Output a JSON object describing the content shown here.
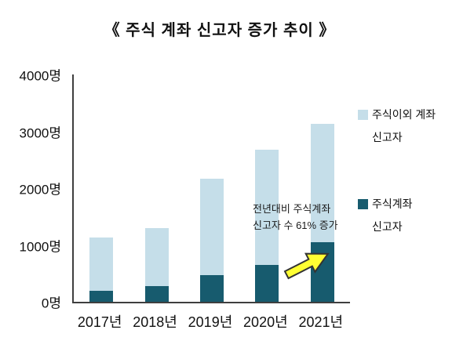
{
  "title": "《 주식 계좌 신고자 증가 추이 》",
  "chart_data": {
    "type": "bar",
    "stacked": true,
    "title": "《 주식 계좌 신고자 증가 추이 》",
    "categories": [
      "2017년",
      "2018년",
      "2019년",
      "2020년",
      "2021년"
    ],
    "series": [
      {
        "name": "주식계좌 신고자",
        "color": "#175b6e",
        "values": [
          200,
          270,
          470,
          650,
          1050
        ]
      },
      {
        "name": "주식이외 계좌 신고자",
        "color": "#c5dee9",
        "values": [
          930,
          1030,
          1690,
          2030,
          2080
        ]
      }
    ],
    "totals": [
      1130,
      1300,
      2160,
      2680,
      3130
    ],
    "ylim": [
      0,
      4000
    ],
    "y_tick_step": 1000,
    "y_ticks": [
      "4000명",
      "3000명",
      "2000명",
      "1000명",
      "0명"
    ],
    "grid": false,
    "legend_position": "right",
    "annotation": {
      "line1": "전년대비 주식계좌",
      "line2": "신고자 수 61% 증가",
      "arrow_color": "#ffff33"
    }
  },
  "legend": {
    "items": [
      {
        "label_line1": "주식이외 계좌",
        "label_line2": "신고자",
        "color": "#c5dee9"
      },
      {
        "label_line1": "주식계좌",
        "label_line2": "신고자",
        "color": "#175b6e"
      }
    ]
  }
}
